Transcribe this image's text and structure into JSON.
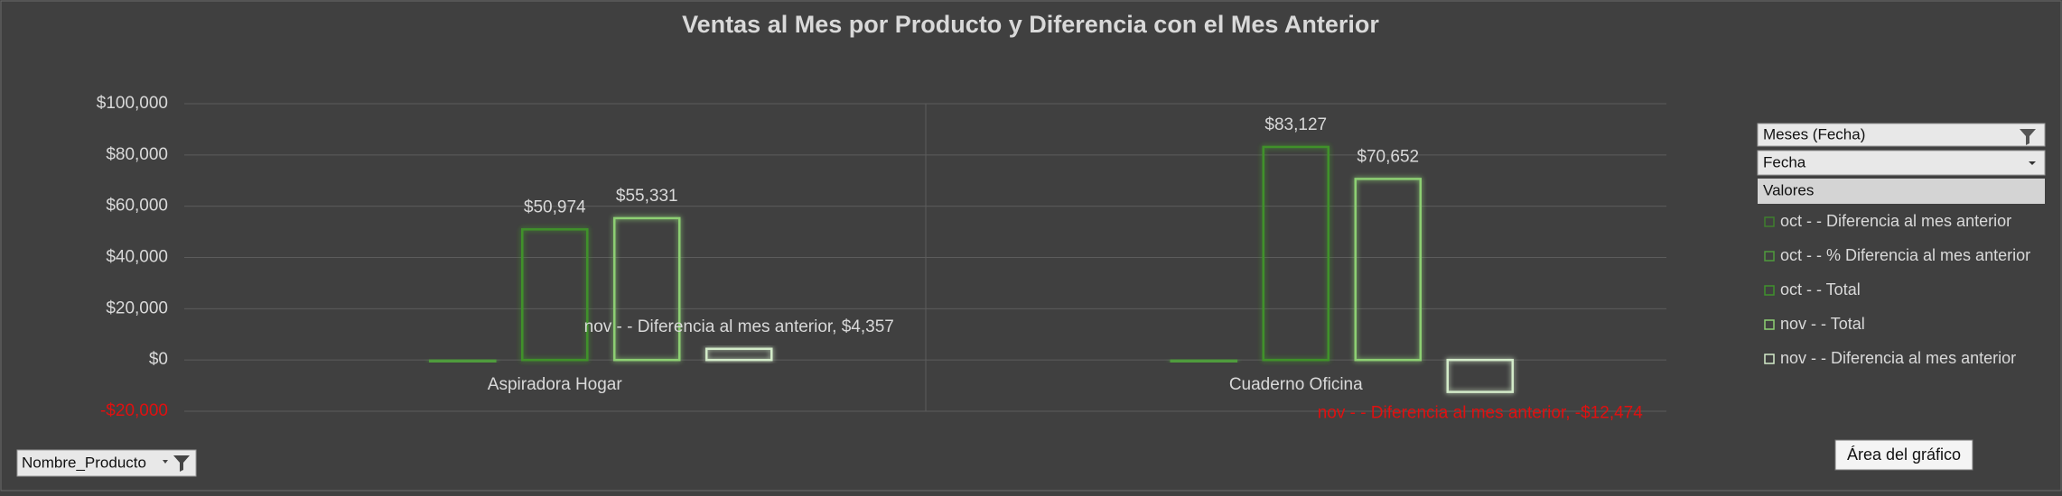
{
  "chart_data": {
    "type": "bar",
    "title": "Ventas al Mes por Producto y Diferencia con el Mes Anterior",
    "categories": [
      "Aspiradora Hogar",
      "Cuaderno Oficina"
    ],
    "series": [
      {
        "name": "oct -  - Diferencia al mes anterior",
        "color": "#3f7f2e",
        "values": [
          null,
          null
        ]
      },
      {
        "name": "oct -  - % Diferencia al mes anterior",
        "color": "#4f9b3c",
        "values": [
          0,
          0
        ]
      },
      {
        "name": "oct -  - Total",
        "color": "#3f912c",
        "values": [
          50974,
          83127
        ],
        "value_labels": [
          "$50,974",
          "$83,127"
        ]
      },
      {
        "name": "nov -  - Total",
        "color": "#8dcf73",
        "values": [
          55331,
          70652
        ],
        "value_labels": [
          "$55,331",
          "$70,652"
        ]
      },
      {
        "name": "nov -  - Diferencia al mes anterior",
        "color": "#d3ebc9",
        "values": [
          4357,
          -12474
        ],
        "value_labels": [
          "nov -  - Diferencia al mes anterior, $4,357",
          "nov -  - Diferencia al mes anterior, -$12,474"
        ]
      }
    ],
    "ylim": [
      -20000,
      100000
    ],
    "yticks": [
      {
        "value": -20000,
        "label": "-$20,000"
      },
      {
        "value": 0,
        "label": "$0"
      },
      {
        "value": 20000,
        "label": "$20,000"
      },
      {
        "value": 40000,
        "label": "$40,000"
      },
      {
        "value": 60000,
        "label": "$60,000"
      },
      {
        "value": 80000,
        "label": "$80,000"
      },
      {
        "value": 100000,
        "label": "$100,000"
      }
    ],
    "grid": true,
    "negative_label_color": "#e01010",
    "legend_position": "right"
  },
  "field_buttons": {
    "filter": "Meses (Fecha)",
    "column": "Fecha",
    "values": "Valores",
    "axis": "Nombre_Producto"
  },
  "tooltip": "Área del gráfico"
}
